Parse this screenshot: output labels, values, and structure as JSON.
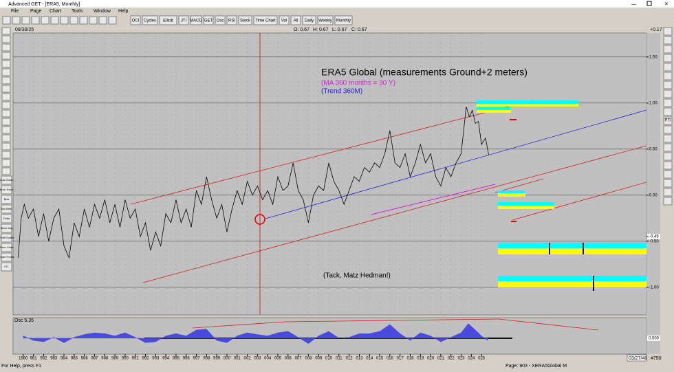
{
  "window": {
    "title": "Advanced GET - [ERA5, Monthly]"
  },
  "menu": [
    "File",
    "Page",
    "Chart",
    "Tools",
    "Window",
    "Help"
  ],
  "toolbar": [
    "OCI",
    "Cycles",
    "Elliott",
    "JTI",
    "MACD",
    "GET",
    "Osc",
    "RSI",
    "Stock",
    "Time Chart",
    "Vol",
    "All",
    "Daily",
    "Weekly",
    "Monthly"
  ],
  "left_toolbar": [
    "Auto Gann",
    "Auto Trend",
    "Bias",
    "Bull Bear",
    "Delta",
    "Move Avg",
    "Profit Scaler",
    "Price Chart",
    "Trade Profile",
    "XTL"
  ],
  "right_toolbar": [
    "PTI"
  ],
  "chart_header": {
    "date": "09/30/25",
    "open": "O: 0.67",
    "high": "H: 0.67",
    "low": "L: 0.67",
    "close": "C: 0.67",
    "change": "+0.17"
  },
  "annotations": {
    "title": "ERA5 Global (measurements Ground+2 meters)",
    "ma": "(MA 360 months = 30 Y)",
    "trend": "(Trend 360M)",
    "thanks": "(Tack, Matz Hedman!)"
  },
  "chart_data": [
    {
      "type": "line",
      "color": "#000000",
      "grid": true,
      "x": [
        1979.5,
        1979.8,
        1980.1,
        1980.5,
        1981,
        1981.5,
        1982,
        1982.5,
        1983,
        1983.5,
        1984,
        1984.5,
        1985,
        1985.5,
        1986,
        1986.5,
        1987,
        1987.5,
        1988,
        1988.5,
        1989,
        1989.5,
        1990,
        1990.5,
        1991,
        1991.5,
        1992,
        1992.5,
        1993,
        1993.5,
        1994,
        1994.5,
        1995,
        1995.5,
        1996,
        1996.5,
        1997,
        1997.5,
        1998,
        1998.5,
        1999,
        1999.5,
        2000,
        2000.5,
        2001,
        2001.5,
        2002,
        2002.5,
        2003,
        2003.5,
        2004,
        2004.5,
        2005,
        2005.5,
        2006,
        2006.5,
        2007,
        2007.5,
        2008,
        2008.5,
        2009,
        2009.5,
        2010,
        2010.5,
        2011,
        2011.5,
        2012,
        2012.5,
        2013,
        2013.5,
        2014,
        2014.5,
        2015,
        2015.5,
        2016,
        2016.5,
        2017,
        2017.5,
        2018,
        2018.5,
        2019,
        2019.5,
        2020,
        2020.5,
        2021,
        2021.5,
        2022,
        2022.5,
        2023,
        2023.5,
        2023.8,
        2024.1,
        2024.4,
        2024.7,
        2025,
        2025.4,
        2025.7
      ],
      "values": [
        -0.68,
        -0.25,
        -0.1,
        -0.25,
        -0.15,
        -0.45,
        -0.2,
        -0.5,
        -0.25,
        -0.15,
        -0.55,
        -0.68,
        -0.3,
        -0.45,
        -0.15,
        -0.35,
        -0.1,
        -0.25,
        -0.05,
        -0.3,
        -0.1,
        -0.35,
        -0.05,
        -0.25,
        -0.15,
        -0.45,
        -0.3,
        -0.6,
        -0.4,
        -0.55,
        -0.2,
        -0.3,
        -0.05,
        -0.3,
        -0.15,
        -0.35,
        0.05,
        -0.1,
        0.2,
        -0.05,
        -0.25,
        -0.1,
        -0.4,
        -0.15,
        0.05,
        -0.1,
        0.15,
        0,
        0.1,
        -0.05,
        0.05,
        -0.1,
        0.2,
        0.05,
        0.1,
        0.35,
        0.05,
        -0.05,
        -0.3,
        0,
        0.1,
        0.05,
        0.35,
        0.15,
        0.05,
        -0.1,
        0.05,
        0.2,
        0.15,
        0.3,
        0.25,
        0.35,
        0.3,
        0.45,
        0.7,
        0.35,
        0.3,
        0.45,
        0.2,
        0.35,
        0.55,
        0.35,
        0.45,
        0.2,
        0.1,
        0.3,
        0.2,
        0.35,
        0.45,
        0.96,
        0.85,
        0.92,
        0.78,
        0.8,
        0.55,
        0.62,
        0.44
      ],
      "xlim": [
        1979.0,
        2041.2
      ],
      "ylim": [
        1.76,
        -1.3
      ],
      "yticks": [
        {
          "value": 1.5,
          "label": "1.50"
        },
        {
          "value": 1,
          "label": "1.00"
        },
        {
          "value": 0.5,
          "label": "0.50"
        },
        {
          "value": 0,
          "label": "0.00"
        },
        -0.45,
        {
          "value": -0.5,
          "label": "-0.50"
        },
        {
          "value": -1,
          "label": "-1.00"
        }
      ],
      "xticks": [
        1980,
        {
          "value": 1981,
          "label": "981"
        },
        {
          "value": 1982,
          "label": "982"
        },
        {
          "value": 1983,
          "label": "983"
        },
        {
          "value": 1984,
          "label": "984"
        },
        {
          "value": 1985,
          "label": "985"
        },
        {
          "value": 1986,
          "label": "986"
        },
        {
          "value": 1987,
          "label": "987"
        },
        {
          "value": 1988,
          "label": "988"
        },
        {
          "value": 1989,
          "label": "989"
        },
        {
          "value": 1990,
          "label": "990"
        },
        {
          "value": 1991,
          "label": "991"
        },
        {
          "value": 1992,
          "label": "992"
        },
        {
          "value": 1993,
          "label": "993"
        },
        {
          "value": 1994,
          "label": "994"
        },
        {
          "value": 1995,
          "label": "995"
        },
        {
          "value": 1996,
          "label": "996"
        },
        {
          "value": 1997,
          "label": "997"
        },
        {
          "value": 1998,
          "label": "998"
        },
        {
          "value": 1999,
          "label": "999"
        },
        {
          "value": 2000,
          "label": "000"
        },
        {
          "value": 2001,
          "label": "001"
        },
        {
          "value": 2002,
          "label": "002"
        },
        {
          "value": 2003,
          "label": "003"
        },
        {
          "value": 2004,
          "label": "004"
        },
        {
          "value": 2005,
          "label": "005"
        },
        {
          "value": 2006,
          "label": "006"
        },
        {
          "value": 2007,
          "label": "007"
        },
        {
          "value": 2008,
          "label": "008"
        },
        {
          "value": 2009,
          "label": "009"
        },
        {
          "value": 2010,
          "label": "010"
        },
        {
          "value": 2011,
          "label": "011"
        },
        {
          "value": 2012,
          "label": "012"
        },
        {
          "value": 2013,
          "label": "013"
        },
        {
          "value": 2014,
          "label": "014"
        },
        {
          "value": 2015,
          "label": "015"
        },
        {
          "value": 2016,
          "label": "016"
        },
        {
          "value": 2017,
          "label": "017"
        },
        {
          "value": 2018,
          "label": "018"
        },
        {
          "value": 2019,
          "label": "019"
        },
        {
          "value": 2020,
          "label": "020"
        },
        {
          "value": 2021,
          "label": "021"
        },
        {
          "value": 2022,
          "label": "022"
        },
        {
          "value": 2023,
          "label": "023"
        },
        {
          "value": 2024,
          "label": "024"
        },
        {
          "value": 2025,
          "label": "025"
        }
      ]
    },
    {
      "type": "area",
      "title": "Osc 5,35",
      "color": "#4a4adf",
      "x": [
        1980,
        1981,
        1982,
        1983,
        1984,
        1985,
        1986,
        1987,
        1988,
        1989,
        1990,
        1991,
        1992,
        1993,
        1994,
        1995,
        1996,
        1997,
        1998,
        1999,
        2000,
        2001,
        2002,
        2003,
        2004,
        2005,
        2006,
        2007,
        2008,
        2009,
        2010,
        2011,
        2012,
        2013,
        2014,
        2015,
        2016,
        2017,
        2018,
        2019,
        2020,
        2021,
        2022,
        2023,
        2023.7,
        2024.3,
        2025,
        2025.6
      ],
      "values": [
        0.05,
        -0.05,
        -0.08,
        0.02,
        -0.1,
        0.02,
        0.08,
        0.12,
        0.1,
        0.05,
        0.12,
        0.02,
        -0.1,
        -0.08,
        0.05,
        0.1,
        0.05,
        0.18,
        0.2,
        -0.05,
        -0.1,
        0.05,
        0.12,
        0.08,
        0.05,
        0.12,
        0.15,
        0.02,
        -0.12,
        0.05,
        0.15,
        0,
        0.02,
        0.1,
        0.1,
        0.15,
        0.3,
        0.1,
        -0.05,
        0.12,
        0.05,
        -0.08,
        0.02,
        0.12,
        0.32,
        0.2,
        0.05,
        -0.05
      ],
      "xlim": [
        1979.0,
        2041.2
      ],
      "ylim": [
        0.45,
        -0.35
      ],
      "yticks": [
        {
          "value": 0,
          "label": "0.000"
        }
      ]
    }
  ],
  "status": {
    "help": "For Help, press F1",
    "page": "Page: 903 - XERA5Global M",
    "time": "03/27/40",
    "count": "#750"
  }
}
